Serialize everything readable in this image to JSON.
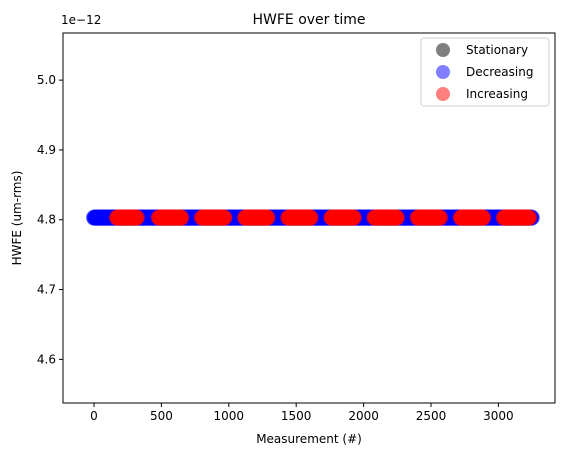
{
  "chart_data": {
    "type": "scatter",
    "title": "HWFE over time",
    "xlabel": "Measurement (#)",
    "ylabel": "HWFE (um-rms)",
    "y_offset_label": "1e−12",
    "xlim": [
      -230,
      3420
    ],
    "ylim": [
      4.5375,
      5.0675
    ],
    "y_scale_exponent": -12,
    "xticks": [
      0,
      500,
      1000,
      1500,
      2000,
      2500,
      3000
    ],
    "xtick_labels": [
      "0",
      "500",
      "1000",
      "1500",
      "2000",
      "2500",
      "3000"
    ],
    "yticks": [
      4.6,
      4.7,
      4.8,
      4.9,
      5.0
    ],
    "ytick_labels": [
      "4.6",
      "4.7",
      "4.8",
      "4.9",
      "5.0"
    ],
    "grid": false,
    "legend_position": "top-right",
    "constant_y": 4.803,
    "series": [
      {
        "name": "Stationary",
        "color": "#000000",
        "alpha": 0.5,
        "segments": []
      },
      {
        "name": "Decreasing",
        "color": "#0000ff",
        "alpha": 0.5,
        "segments": [
          [
            0,
            3250
          ]
        ]
      },
      {
        "name": "Increasing",
        "color": "#ff0000",
        "alpha": 0.5,
        "segments": [
          [
            170,
            320
          ],
          [
            480,
            650
          ],
          [
            800,
            970
          ],
          [
            1120,
            1290
          ],
          [
            1440,
            1610
          ],
          [
            1760,
            1930
          ],
          [
            2080,
            2250
          ],
          [
            2400,
            2570
          ],
          [
            2720,
            2890
          ],
          [
            3040,
            3230
          ]
        ]
      }
    ],
    "point_step": 4
  }
}
